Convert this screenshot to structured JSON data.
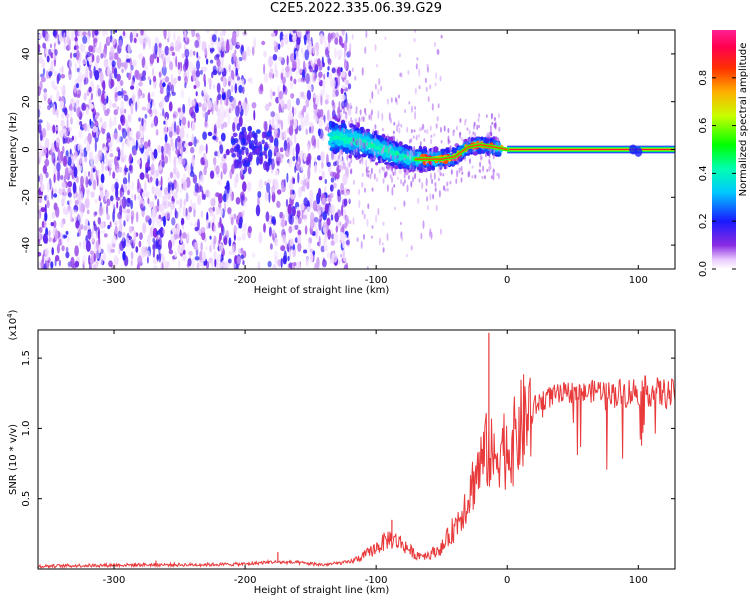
{
  "title": "C2E5.2022.335.06.39.G29",
  "chart_data": [
    {
      "type": "heatmap",
      "title": "",
      "xlabel": "Height of straight line (km)",
      "ylabel": "Frequency (Hz)",
      "xlim": [
        -358,
        128
      ],
      "ylim": [
        -50,
        50
      ],
      "xticks": [
        -300,
        -200,
        -100,
        0,
        100
      ],
      "xtick_labels": [
        "-300",
        "-200",
        "-100",
        "0",
        "100"
      ],
      "yticks": [
        -40,
        -20,
        0,
        20,
        40
      ],
      "ytick_labels": [
        "-40",
        "-20",
        "0",
        "20",
        "40"
      ],
      "colorbar": {
        "label": "Normalized spectral amplitude",
        "range": [
          0,
          1
        ],
        "ticks": [
          0.0,
          0.2,
          0.4,
          0.6,
          0.8
        ],
        "tick_labels": [
          "0.0",
          "0.2",
          "0.4",
          "0.6",
          "0.8"
        ],
        "colormap": "rainbow (white-violet-blue-cyan-green-yellow-orange-red-magenta)"
      },
      "ridge": {
        "description": "narrow high-amplitude frequency ridge",
        "x": [
          -130,
          -120,
          -110,
          -100,
          -90,
          -80,
          -70,
          -60,
          -50,
          -40,
          -30,
          -20,
          -10,
          0,
          20,
          50,
          80,
          100,
          128
        ],
        "y": [
          5,
          4,
          3,
          1,
          -1,
          -3,
          -4,
          -4,
          -4,
          -3,
          1,
          2,
          1,
          0,
          0,
          0,
          0,
          0,
          0
        ],
        "amplitude": [
          0.35,
          0.35,
          0.35,
          0.35,
          0.3,
          0.3,
          0.3,
          0.75,
          0.78,
          0.78,
          0.8,
          0.85,
          0.85,
          0.95,
          1.0,
          1.0,
          1.0,
          1.0,
          1.0
        ]
      },
      "noise_region_x": [
        -358,
        -130
      ],
      "grid": false
    },
    {
      "type": "line",
      "title": "",
      "xlabel": "Height of straight line (km)",
      "ylabel": "SNR (10 * v/v)",
      "y_multiplier": "(x10",
      "y_multiplier_exponent": "4",
      "y_multiplier_close": ")",
      "xlim": [
        -358,
        128
      ],
      "ylim": [
        0,
        17000
      ],
      "xticks": [
        -300,
        -200,
        -100,
        0,
        100
      ],
      "xtick_labels": [
        "-300",
        "-200",
        "-100",
        "0",
        "100"
      ],
      "yticks": [
        5000,
        10000,
        15000
      ],
      "ytick_labels": [
        "0.5",
        "1.0",
        "1.5"
      ],
      "grid": false,
      "series": [
        {
          "color": "#e8393b",
          "x": [
            -358,
            -320,
            -280,
            -240,
            -200,
            -180,
            -160,
            -140,
            -120,
            -110,
            -100,
            -90,
            -80,
            -70,
            -60,
            -50,
            -40,
            -30,
            -25,
            -20,
            -15,
            -12,
            -10,
            -5,
            0,
            5,
            10,
            20,
            30,
            40,
            50,
            60,
            70,
            80,
            90,
            100,
            110,
            128
          ],
          "y": [
            200,
            250,
            300,
            300,
            350,
            500,
            450,
            300,
            500,
            900,
            1500,
            2200,
            1800,
            1000,
            1000,
            1500,
            3000,
            5000,
            6500,
            7500,
            8500,
            8000,
            7500,
            9000,
            8500,
            9000,
            10000,
            11500,
            12200,
            12400,
            12600,
            12500,
            12800,
            12500,
            12500,
            12700,
            12600,
            12400
          ]
        }
      ],
      "spikes": [
        {
          "x": -14,
          "y": 16800
        },
        {
          "x": -88,
          "y": 3500
        },
        {
          "x": -175,
          "y": 1200
        },
        {
          "x": -268,
          "y": 600
        }
      ]
    }
  ]
}
